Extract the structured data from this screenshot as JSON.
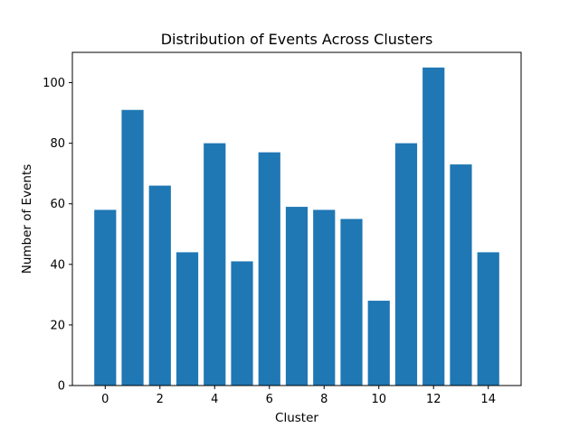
{
  "chart_data": {
    "type": "bar",
    "title": "Distribution of Events Across Clusters",
    "xlabel": "Cluster",
    "ylabel": "Number of Events",
    "categories": [
      0,
      1,
      2,
      3,
      4,
      5,
      6,
      7,
      8,
      9,
      10,
      11,
      12,
      13,
      14
    ],
    "values": [
      58,
      91,
      66,
      44,
      80,
      41,
      77,
      59,
      58,
      55,
      28,
      80,
      105,
      73,
      44
    ],
    "xlim": [
      -1.2,
      15.2
    ],
    "ylim": [
      0,
      110
    ],
    "xticks": [
      0,
      2,
      4,
      6,
      8,
      10,
      12,
      14
    ],
    "yticks": [
      0,
      20,
      40,
      60,
      80,
      100
    ],
    "bar_color": "#1f77b4",
    "grid": false,
    "legend": "none"
  }
}
